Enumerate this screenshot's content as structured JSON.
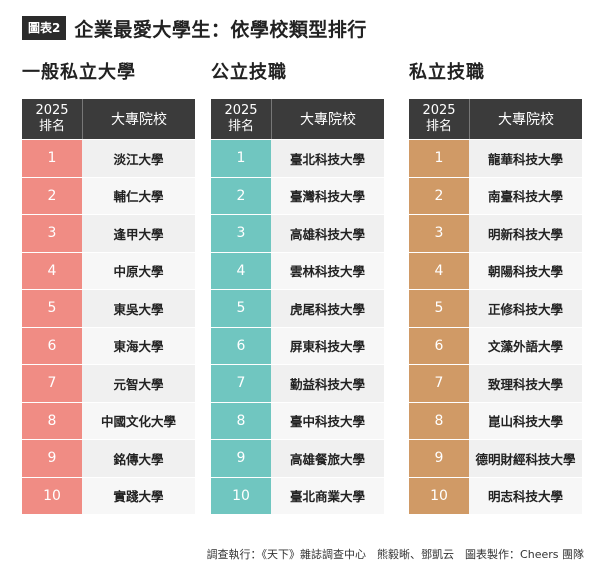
{
  "header": {
    "badge": "圖表2",
    "title": "企業最愛大學生：依學校類型排行"
  },
  "table_headers": {
    "rank_year": "2025",
    "rank_label": "排名",
    "school_label": "大專院校"
  },
  "colors": {
    "general": "#f08c84",
    "public_tech": "#70c6c0",
    "private_tech": "#d09a66"
  },
  "columns": [
    {
      "title": "一般私立大學",
      "rows": [
        {
          "rank": "1",
          "school": "淡江大學"
        },
        {
          "rank": "2",
          "school": "輔仁大學"
        },
        {
          "rank": "3",
          "school": "逢甲大學"
        },
        {
          "rank": "4",
          "school": "中原大學"
        },
        {
          "rank": "5",
          "school": "東吳大學"
        },
        {
          "rank": "6",
          "school": "東海大學"
        },
        {
          "rank": "7",
          "school": "元智大學"
        },
        {
          "rank": "8",
          "school": "中國文化大學"
        },
        {
          "rank": "9",
          "school": "銘傳大學"
        },
        {
          "rank": "10",
          "school": "實踐大學"
        }
      ]
    },
    {
      "title": "公立技職",
      "rows": [
        {
          "rank": "1",
          "school": "臺北科技大學"
        },
        {
          "rank": "2",
          "school": "臺灣科技大學"
        },
        {
          "rank": "3",
          "school": "高雄科技大學"
        },
        {
          "rank": "4",
          "school": "雲林科技大學"
        },
        {
          "rank": "5",
          "school": "虎尾科技大學"
        },
        {
          "rank": "6",
          "school": "屏東科技大學"
        },
        {
          "rank": "7",
          "school": "勤益科技大學"
        },
        {
          "rank": "8",
          "school": "臺中科技大學"
        },
        {
          "rank": "9",
          "school": "高雄餐旅大學"
        },
        {
          "rank": "10",
          "school": "臺北商業大學"
        }
      ]
    },
    {
      "title": "私立技職",
      "rows": [
        {
          "rank": "1",
          "school": "龍華科技大學"
        },
        {
          "rank": "2",
          "school": "南臺科技大學"
        },
        {
          "rank": "3",
          "school": "明新科技大學"
        },
        {
          "rank": "4",
          "school": "朝陽科技大學"
        },
        {
          "rank": "5",
          "school": "正修科技大學"
        },
        {
          "rank": "6",
          "school": "文藻外語大學"
        },
        {
          "rank": "7",
          "school": "致理科技大學"
        },
        {
          "rank": "8",
          "school": "崑山科技大學"
        },
        {
          "rank": "9",
          "school": "德明財經科技大學"
        },
        {
          "rank": "10",
          "school": "明志科技大學"
        }
      ]
    }
  ],
  "footer": "調查執行：《天下》雜誌調查中心　熊毅晰、鄧凱云　圖表製作：Cheers 團隊"
}
